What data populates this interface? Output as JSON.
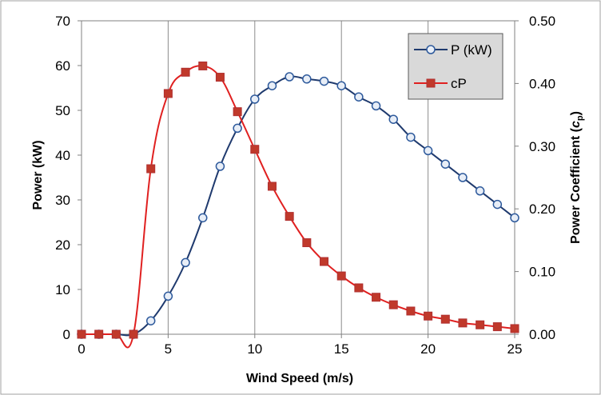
{
  "chart_data": {
    "type": "line",
    "xlabel": "Wind Speed (m/s)",
    "ylabel": "Power (kW)",
    "y2label_main": "Power Coefficient (",
    "y2label_italic": "c",
    "y2label_sub": "p",
    "y2label_end": ")",
    "xlim": [
      0,
      25
    ],
    "ylim": [
      0,
      70
    ],
    "y2lim": [
      0,
      0.5
    ],
    "x_ticks": [
      0,
      5,
      10,
      15,
      20,
      25
    ],
    "y_ticks": [
      0,
      10,
      20,
      30,
      40,
      50,
      60,
      70
    ],
    "y2_ticks": [
      "0.00",
      "0.10",
      "0.20",
      "0.30",
      "0.40",
      "0.50"
    ],
    "grid": "vertical",
    "legend_position": "top-right",
    "series": [
      {
        "name": "P (kW)",
        "axis": "left",
        "color": "#1f3a6e",
        "marker": "circle",
        "x": [
          0,
          1,
          2,
          3,
          4,
          5,
          6,
          7,
          8,
          9,
          10,
          11,
          12,
          13,
          14,
          15,
          16,
          17,
          18,
          19,
          20,
          21,
          22,
          23,
          24,
          25
        ],
        "y": [
          0,
          0,
          0,
          0,
          3,
          8.5,
          16,
          26,
          37.5,
          46,
          52.5,
          55.5,
          57.5,
          57,
          56.5,
          55.5,
          53,
          51,
          48,
          44,
          41,
          38,
          35,
          32,
          29,
          26
        ]
      },
      {
        "name": "cP",
        "axis": "right",
        "color": "#e02020",
        "marker": "square",
        "x": [
          0,
          1,
          2,
          3,
          4,
          5,
          6,
          7,
          8,
          9,
          10,
          11,
          12,
          13,
          14,
          15,
          16,
          17,
          18,
          19,
          20,
          21,
          22,
          23,
          24,
          25
        ],
        "y": [
          0,
          0,
          0,
          0,
          0.264,
          0.384,
          0.418,
          0.428,
          0.41,
          0.355,
          0.295,
          0.236,
          0.188,
          0.146,
          0.116,
          0.093,
          0.074,
          0.059,
          0.047,
          0.037,
          0.029,
          0.024,
          0.018,
          0.015,
          0.012,
          0.009
        ]
      }
    ]
  }
}
